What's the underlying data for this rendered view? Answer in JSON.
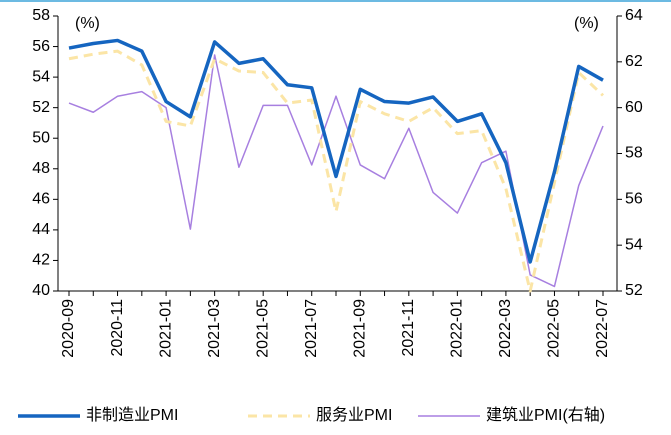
{
  "chart_data": {
    "type": "line",
    "categories": [
      "2020-09",
      null,
      "2020-11",
      null,
      "2021-01",
      null,
      "2021-03",
      null,
      "2021-05",
      null,
      "2021-07",
      null,
      "2021-09",
      null,
      "2021-11",
      null,
      "2022-01",
      null,
      "2022-03",
      null,
      "2022-05",
      null,
      "2022-07"
    ],
    "series": [
      {
        "name": "非制造业PMI",
        "color": "#1565c0",
        "values": [
          55.9,
          56.2,
          56.4,
          55.7,
          52.4,
          51.4,
          56.3,
          54.9,
          55.2,
          53.5,
          53.3,
          47.5,
          53.2,
          52.4,
          52.3,
          52.7,
          51.1,
          51.6,
          48.4,
          41.9,
          47.8,
          54.7,
          53.8
        ]
      },
      {
        "name": "服务业PMI",
        "color": "#fbe5a6",
        "dashed": true,
        "values": [
          55.2,
          55.5,
          55.7,
          54.8,
          51.1,
          50.8,
          55.2,
          54.4,
          54.3,
          52.3,
          52.5,
          45.2,
          52.4,
          51.6,
          51.1,
          52.0,
          50.3,
          50.5,
          46.7,
          40.0,
          47.1,
          54.3,
          52.8
        ]
      },
      {
        "name": "建筑业PMI(右轴)",
        "color": "#a77fe0",
        "axis": "y2",
        "values": [
          60.2,
          59.8,
          60.5,
          60.7,
          60.0,
          54.7,
          62.3,
          57.4,
          60.1,
          60.1,
          57.5,
          60.5,
          57.5,
          56.9,
          59.1,
          56.3,
          55.4,
          57.6,
          58.1,
          52.7,
          52.2,
          56.6,
          59.2
        ]
      }
    ],
    "ylim": [
      40,
      58
    ],
    "yticks": [
      40,
      42,
      44,
      46,
      48,
      50,
      52,
      54,
      56,
      58
    ],
    "y2lim": [
      52,
      64
    ],
    "y2ticks": [
      52,
      54,
      56,
      58,
      60,
      62,
      64
    ],
    "annotations": [
      "(%)",
      "(%)"
    ]
  }
}
